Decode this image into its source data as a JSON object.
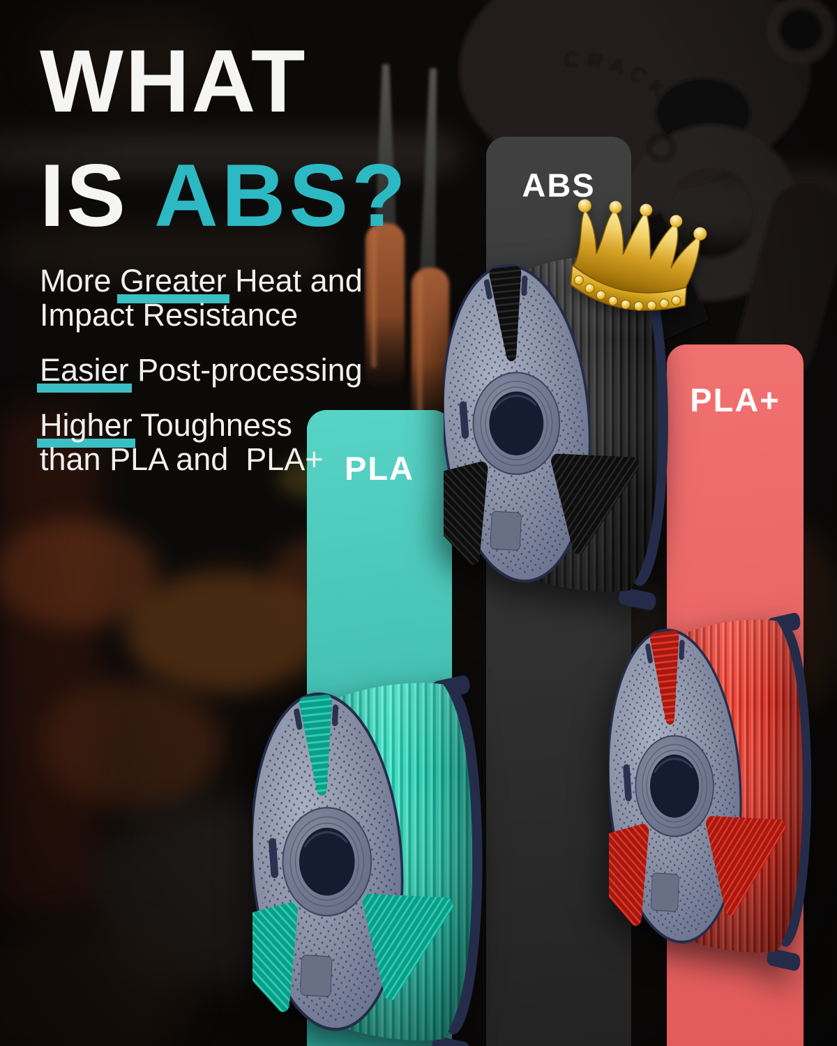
{
  "title": {
    "line1": "WHAT",
    "line2_white": "IS",
    "line2_accent": "ABS?"
  },
  "bullets": [
    {
      "lines": [
        [
          {
            "t": "More "
          },
          {
            "t": "Greater",
            "hl": true
          },
          {
            "t": " Heat and"
          }
        ],
        [
          {
            "t": "Impact Resistance"
          }
        ]
      ]
    },
    {
      "lines": [
        [
          {
            "t": "Easier",
            "hl": true
          },
          {
            "t": " Post-processing"
          }
        ]
      ]
    },
    {
      "lines": [
        [
          {
            "t": "Higher",
            "hl": true
          },
          {
            "t": " Toughness"
          }
        ],
        [
          {
            "t": "than PLA and  PLA+"
          }
        ]
      ]
    }
  ],
  "bars": [
    {
      "label": "PLA"
    },
    {
      "label": "ABS"
    },
    {
      "label": "PLA+"
    }
  ],
  "background": {
    "engraving": "CRACKER"
  },
  "crown": {
    "meaning": "best-choice-crown"
  },
  "spools": [
    {
      "id": "abs",
      "material": "ABS",
      "filament": {
        "base": "#2d2d2d",
        "light": "#4f4f4f",
        "dark": "#0e0e0e"
      }
    },
    {
      "id": "pla",
      "material": "PLA",
      "filament": {
        "base": "#2bdcc0",
        "light": "#9df3e3",
        "dark": "#0f9c87"
      }
    },
    {
      "id": "plaplus",
      "material": "PLA+",
      "filament": {
        "base": "#f43b2e",
        "light": "#ff8b7d",
        "dark": "#a41a10"
      }
    }
  ],
  "colors": {
    "background": "#0c0a09",
    "accent": "#2db9c4",
    "highlight": "#3fc9ce",
    "title_white": "#f5f5f4",
    "body_text": "#f2f1ef",
    "label_text": "#ffffff",
    "bar_pla_top": "#57d4c6",
    "bar_pla_bottom": "#2fa99c",
    "bar_abs_top": "#414141",
    "bar_abs_bottom": "#232323",
    "bar_plus_top": "#f17070",
    "bar_plus_bottom": "#e25b5b",
    "crown_gold": "#d9a520",
    "spool_flange": "#8b91a6",
    "spool_navy": "#262e4c"
  }
}
